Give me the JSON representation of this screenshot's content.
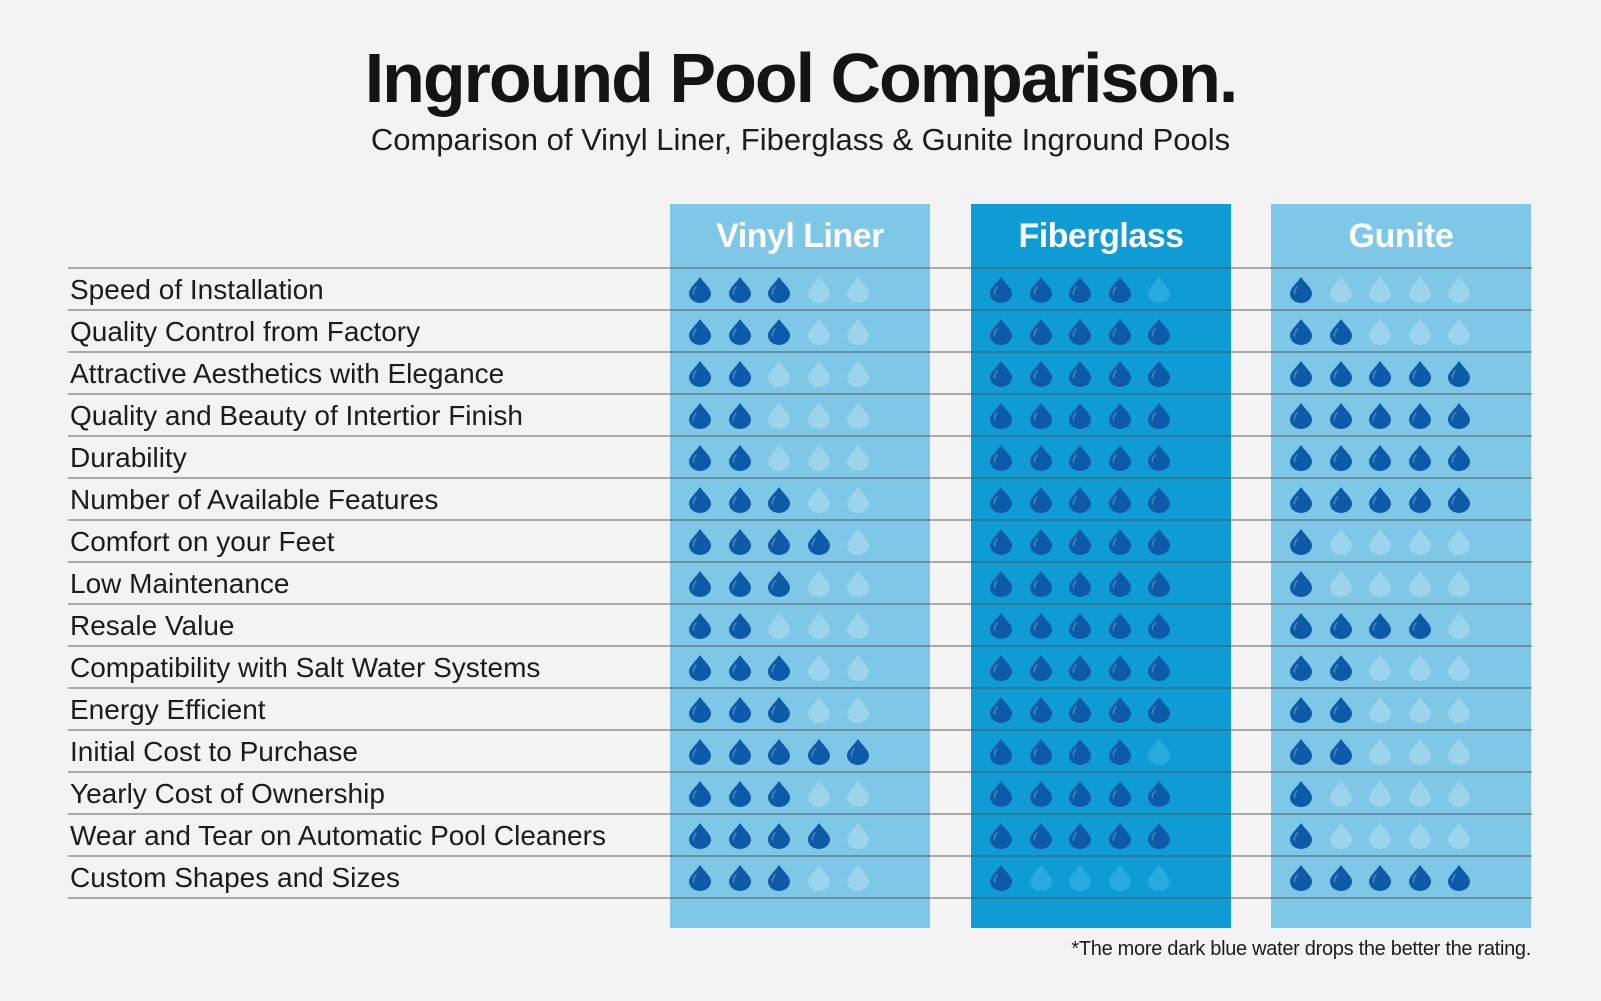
{
  "title": "Inground Pool Comparison.",
  "subtitle": "Comparison of Vinyl Liner, Fiberglass & Gunite Inground Pools",
  "footnote": "*The more dark blue water drops the better the rating.",
  "colors": {
    "column_light": "#7fc7e6",
    "column_fiberglass": "#0f9cd4",
    "drop_filled": "#0d5aa8",
    "drop_empty_light": "#9bd4ec",
    "drop_empty_fiberglass": "#27abdf"
  },
  "chart_data": {
    "type": "table",
    "max_rating": 5,
    "columns": [
      "Vinyl Liner",
      "Fiberglass",
      "Gunite"
    ],
    "rows": [
      {
        "label": "Speed of Installation",
        "ratings": [
          3,
          4,
          1
        ]
      },
      {
        "label": "Quality Control from Factory",
        "ratings": [
          3,
          5,
          2
        ]
      },
      {
        "label": "Attractive Aesthetics with Elegance",
        "ratings": [
          2,
          5,
          5
        ]
      },
      {
        "label": "Quality and Beauty of Intertior Finish",
        "ratings": [
          2,
          5,
          5
        ]
      },
      {
        "label": "Durability",
        "ratings": [
          2,
          5,
          5
        ]
      },
      {
        "label": "Number of Available Features",
        "ratings": [
          3,
          5,
          5
        ]
      },
      {
        "label": "Comfort on your Feet",
        "ratings": [
          4,
          5,
          1
        ]
      },
      {
        "label": "Low Maintenance",
        "ratings": [
          3,
          5,
          1
        ]
      },
      {
        "label": "Resale Value",
        "ratings": [
          2,
          5,
          4
        ]
      },
      {
        "label": "Compatibility with Salt Water Systems",
        "ratings": [
          3,
          5,
          2
        ]
      },
      {
        "label": "Energy Efficient",
        "ratings": [
          3,
          5,
          2
        ]
      },
      {
        "label": "Initial Cost to Purchase",
        "ratings": [
          5,
          4,
          2
        ]
      },
      {
        "label": "Yearly Cost of Ownership",
        "ratings": [
          3,
          5,
          1
        ]
      },
      {
        "label": "Wear and Tear on Automatic Pool Cleaners",
        "ratings": [
          4,
          5,
          1
        ]
      },
      {
        "label": "Custom Shapes and Sizes",
        "ratings": [
          3,
          1,
          5
        ]
      }
    ]
  }
}
